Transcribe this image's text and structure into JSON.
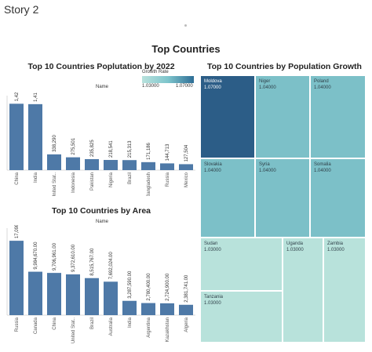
{
  "story": {
    "title": "Story 2"
  },
  "dashboard": {
    "title": "Top Countries"
  },
  "legend": {
    "title": "Growth Rate",
    "min": "1.03000",
    "max": "1.07000",
    "colors": [
      "#b9e2dd",
      "#7ec5cc",
      "#2e6e96"
    ]
  },
  "chart_data": [
    {
      "type": "bar",
      "title": "Top 10 Countries Poplutation by 2022",
      "subtitle": "Name",
      "color": "#4e79a7",
      "categories": [
        "China",
        "India",
        "United Stat..",
        "Indonesia",
        "Pakistan",
        "Nigeria",
        "Brazil",
        "Bangladesh",
        "Russia",
        "Mexico"
      ],
      "values": [
        1425887,
        1417173,
        338290,
        275501,
        235825,
        218541,
        215313,
        171186,
        144713,
        127504
      ],
      "labels": [
        "1,425,887",
        "1,417,173",
        "338,290",
        "275,501",
        "235,825",
        "218,541",
        "215,313",
        "171,186",
        "144,713",
        "127,504"
      ],
      "ylim": [
        0,
        1600000
      ],
      "grid": false
    },
    {
      "type": "bar",
      "title": "Top 10 Countries by Area",
      "subtitle": "Name",
      "color": "#4e79a7",
      "categories": [
        "Russia",
        "Canada",
        "China",
        "United Stat..",
        "Brazil",
        "Australia",
        "India",
        "Argentina",
        "Kazakhstan",
        "Algeria"
      ],
      "values": [
        17098242,
        9984670,
        9706961,
        9372610,
        8515767,
        7692024,
        3287590,
        2780400,
        2724900,
        2381741
      ],
      "labels": [
        "17,098,242.00",
        "9,984,670.00",
        "9,706,961.00",
        "9,372,610.00",
        "8,515,767.00",
        "7,692,024.00",
        "3,287,590.00",
        "2,780,400.00",
        "2,724,900.00",
        "2,381,741.00"
      ],
      "ylim": [
        0,
        20000000
      ],
      "grid": false
    },
    {
      "type": "treemap",
      "title": "Top 10 Countries by Population Growth",
      "items": [
        {
          "name": "Moldova",
          "value": "1.07000",
          "color": "#2c5d87",
          "dark": true
        },
        {
          "name": "Niger",
          "value": "1.04000",
          "color": "#7cc0c8"
        },
        {
          "name": "Poland",
          "value": "1.04000",
          "color": "#7cc0c8"
        },
        {
          "name": "Slovakia",
          "value": "1.04000",
          "color": "#7cc0c8"
        },
        {
          "name": "Syria",
          "value": "1.04000",
          "color": "#7cc0c8"
        },
        {
          "name": "Somalia",
          "value": "1.04000",
          "color": "#7cc0c8"
        },
        {
          "name": "Sudan",
          "value": "1.03000",
          "color": "#b8e2db"
        },
        {
          "name": "Uganda",
          "value": "1.03000",
          "color": "#b8e2db"
        },
        {
          "name": "Zambia",
          "value": "1.03000",
          "color": "#b8e2db"
        },
        {
          "name": "Tanzania",
          "value": "1.03000",
          "color": "#b8e2db"
        }
      ]
    }
  ]
}
